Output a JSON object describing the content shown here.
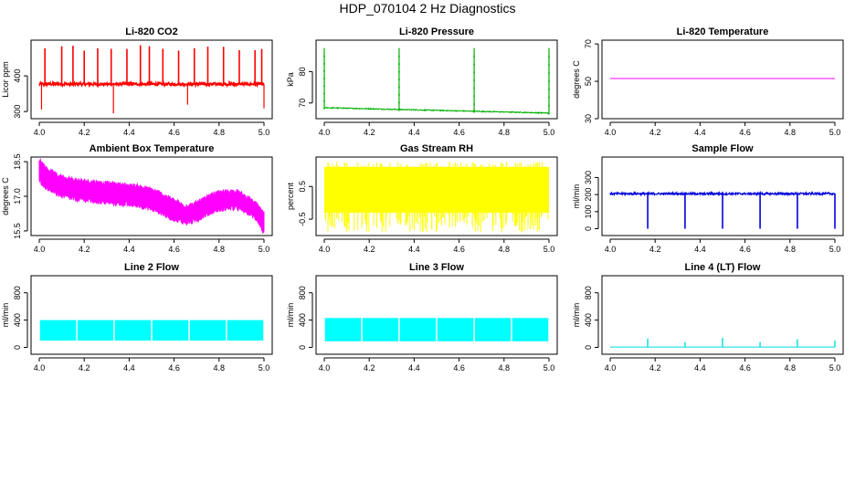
{
  "title": "HDP_070104  2 Hz Diagnostics",
  "chart_data": [
    {
      "type": "line",
      "title": "Li-820 CO2",
      "ylabel": "Licor ppm",
      "color": "#ff0000",
      "xlim": [
        4.0,
        5.0
      ],
      "ylim": [
        280,
        500
      ],
      "xticks": [
        "4.0",
        "4.2",
        "4.4",
        "4.6",
        "4.8",
        "5.0"
      ],
      "yticks": [
        "300",
        "400"
      ],
      "series": [
        {
          "name": "co2",
          "baseline": 377,
          "noise": 4,
          "spikes_up": [
            4.025,
            4.1,
            4.15,
            4.2,
            4.26,
            4.32,
            4.39,
            4.45,
            4.49,
            4.55,
            4.62,
            4.69,
            4.75,
            4.82,
            4.89,
            4.96,
            4.99
          ],
          "spike_up_value": 490,
          "spikes_down": [
            4.01,
            4.33,
            4.66,
            5.0
          ],
          "spike_down_value": 290
        }
      ]
    },
    {
      "type": "line",
      "title": "Li-820 Pressure",
      "ylabel": "kPa",
      "color": "#00b000",
      "xlim": [
        4.0,
        5.0
      ],
      "ylim": [
        65,
        90
      ],
      "xticks": [
        "4.0",
        "4.2",
        "4.4",
        "4.6",
        "4.8",
        "5.0"
      ],
      "yticks": [
        "70",
        "80"
      ],
      "series": [
        {
          "name": "pressure",
          "start": 68.5,
          "end": 66.8,
          "spikes_up": [
            4.0,
            4.333,
            4.667,
            5.0
          ],
          "spike_up_value": 87.5
        }
      ]
    },
    {
      "type": "line",
      "title": "Li-820 Temperature",
      "ylabel": "degrees C",
      "color": "#ff00ff",
      "xlim": [
        4.0,
        5.0
      ],
      "ylim": [
        30,
        72
      ],
      "xticks": [
        "4.0",
        "4.2",
        "4.4",
        "4.6",
        "4.8",
        "5.0"
      ],
      "yticks": [
        "30",
        "50",
        "70"
      ],
      "series": [
        {
          "name": "temperature",
          "value": 51.5
        }
      ]
    },
    {
      "type": "area",
      "title": "Ambient Box Temperature",
      "ylabel": "degrees C",
      "color": "#ff00ff",
      "xlim": [
        4.0,
        5.0
      ],
      "ylim": [
        15.3,
        18.7
      ],
      "xticks": [
        "4.0",
        "4.2",
        "4.4",
        "4.6",
        "4.8",
        "5.0"
      ],
      "yticks": [
        "15.5",
        "17.0",
        "18.5"
      ],
      "series": [
        {
          "name": "box_temp",
          "x": [
            4.0,
            4.03,
            4.08,
            4.15,
            4.25,
            4.35,
            4.45,
            4.52,
            4.58,
            4.64,
            4.68,
            4.72,
            4.78,
            4.84,
            4.88,
            4.93,
            4.97,
            5.0
          ],
          "upper": [
            18.6,
            18.2,
            17.9,
            17.7,
            17.6,
            17.5,
            17.4,
            17.2,
            16.9,
            16.6,
            16.6,
            16.8,
            17.1,
            17.2,
            17.2,
            16.9,
            16.6,
            16.2
          ],
          "lower": [
            17.7,
            17.4,
            17.1,
            16.9,
            16.8,
            16.7,
            16.6,
            16.4,
            16.1,
            15.9,
            15.9,
            16.1,
            16.4,
            16.5,
            16.5,
            16.3,
            16.0,
            15.4
          ]
        }
      ]
    },
    {
      "type": "area",
      "title": "Gas Stream RH",
      "ylabel": "percent",
      "color": "#ffff00",
      "xlim": [
        4.0,
        5.0
      ],
      "ylim": [
        -1.0,
        1.4
      ],
      "xticks": [
        "4.0",
        "4.2",
        "4.4",
        "4.6",
        "4.8",
        "5.0"
      ],
      "yticks": [
        "-0.5",
        "0.5"
      ],
      "series": [
        {
          "name": "rh",
          "upper": 1.1,
          "lower": -0.3,
          "dip_min": -0.9
        }
      ]
    },
    {
      "type": "line",
      "title": "Sample Flow",
      "ylabel": "ml/min",
      "color": "#0000dd",
      "xlim": [
        4.0,
        5.0
      ],
      "ylim": [
        -40,
        420
      ],
      "xticks": [
        "4.0",
        "4.2",
        "4.4",
        "4.6",
        "4.8",
        "5.0"
      ],
      "yticks": [
        "0",
        "100",
        "200",
        "300"
      ],
      "series": [
        {
          "name": "sample_flow",
          "baseline": 205,
          "noise": 6,
          "dips": [
            4.167,
            4.333,
            4.5,
            4.667,
            4.833,
            5.0
          ],
          "dip_value": 0
        }
      ]
    },
    {
      "type": "area",
      "title": "Line 2 Flow",
      "ylabel": "ml/min",
      "color": "#00ffff",
      "xlim": [
        4.0,
        5.0
      ],
      "ylim": [
        -100,
        1050
      ],
      "xticks": [
        "4.0",
        "4.2",
        "4.4",
        "4.6",
        "4.8",
        "5.0"
      ],
      "yticks": [
        "0",
        "400",
        "800"
      ],
      "series": [
        {
          "name": "line2_flow",
          "upper": 400,
          "lower": 100,
          "gaps": [
            4.167,
            4.333,
            4.5,
            4.667,
            4.833
          ]
        }
      ]
    },
    {
      "type": "area",
      "title": "Line 3 Flow",
      "ylabel": "ml/min",
      "color": "#00ffff",
      "xlim": [
        4.0,
        5.0
      ],
      "ylim": [
        -100,
        1050
      ],
      "xticks": [
        "4.0",
        "4.2",
        "4.4",
        "4.6",
        "4.8",
        "5.0"
      ],
      "yticks": [
        "0",
        "400",
        "800"
      ],
      "series": [
        {
          "name": "line3_flow",
          "upper": 430,
          "lower": 90,
          "gaps": [
            4.167,
            4.333,
            4.5,
            4.667,
            4.833
          ]
        }
      ]
    },
    {
      "type": "line",
      "title": "Line 4 (LT) Flow",
      "ylabel": "ml/min",
      "color": "#00dddd",
      "xlim": [
        4.0,
        5.0
      ],
      "ylim": [
        -100,
        1050
      ],
      "xticks": [
        "4.0",
        "4.2",
        "4.4",
        "4.6",
        "4.8",
        "5.0"
      ],
      "yticks": [
        "0",
        "400",
        "800"
      ],
      "series": [
        {
          "name": "line4_flow",
          "baseline": 5,
          "spikes": [
            4.167,
            4.333,
            4.5,
            4.667,
            4.833,
            5.0
          ],
          "spike_values": [
            130,
            80,
            140,
            80,
            120,
            100
          ]
        }
      ]
    }
  ]
}
